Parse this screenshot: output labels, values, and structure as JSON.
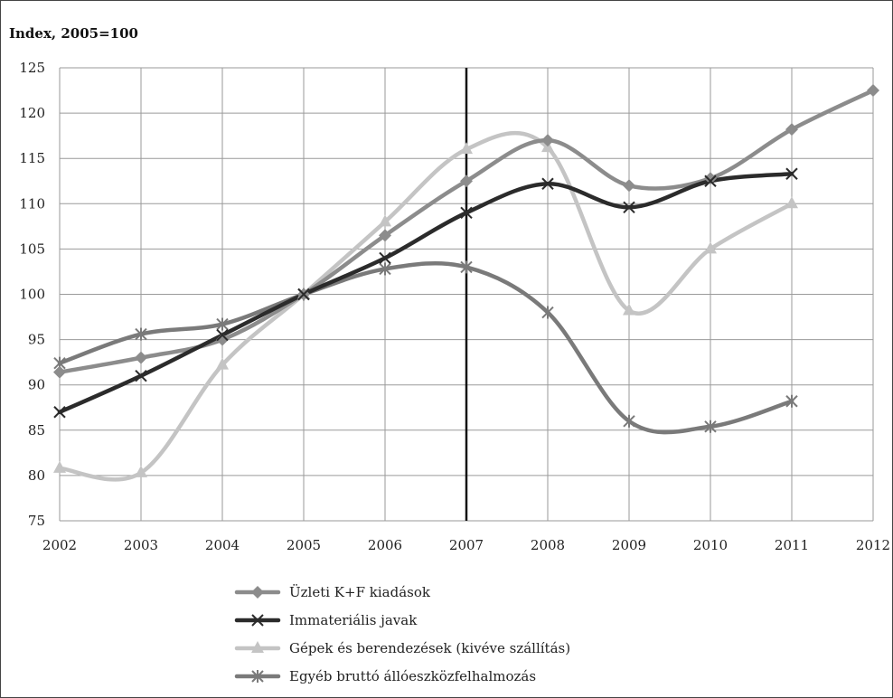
{
  "chart_data": {
    "type": "line",
    "title": "Index, 2005=100",
    "xlabel": "",
    "ylabel": "",
    "x": [
      "2002",
      "2003",
      "2004",
      "2005",
      "2006",
      "2007",
      "2008",
      "2009",
      "2010",
      "2011",
      "2012"
    ],
    "ylim": [
      75,
      125
    ],
    "yticks": [
      75,
      80,
      85,
      90,
      95,
      100,
      105,
      110,
      115,
      120,
      125
    ],
    "grid": true,
    "reference_line_x": "2007",
    "legend_position": "bottom",
    "series": [
      {
        "name": "Üzleti K+F kiadások",
        "color": "#8c8c8c",
        "marker": "diamond",
        "values": [
          91.4,
          93.0,
          95.0,
          100.0,
          106.5,
          112.5,
          117.0,
          112.0,
          112.8,
          118.2,
          122.5
        ]
      },
      {
        "name": "Immateriális javak",
        "color": "#2b2b2b",
        "marker": "x",
        "values": [
          87.0,
          91.0,
          95.5,
          100.0,
          104.0,
          109.0,
          112.2,
          109.6,
          112.5,
          113.3,
          null
        ]
      },
      {
        "name": "Gépek és berendezések (kivéve szállítás)",
        "color": "#c4c4c4",
        "marker": "triangle",
        "values": [
          80.8,
          80.3,
          92.2,
          100.0,
          108.0,
          116.0,
          116.2,
          98.2,
          105.0,
          110.0,
          null
        ]
      },
      {
        "name": "Egyéb bruttó állóeszközfelhalmozás",
        "color": "#7a7a7a",
        "marker": "star",
        "values": [
          92.4,
          95.6,
          96.7,
          100.0,
          102.8,
          103.0,
          98.0,
          86.0,
          85.4,
          88.2,
          null
        ]
      }
    ]
  }
}
